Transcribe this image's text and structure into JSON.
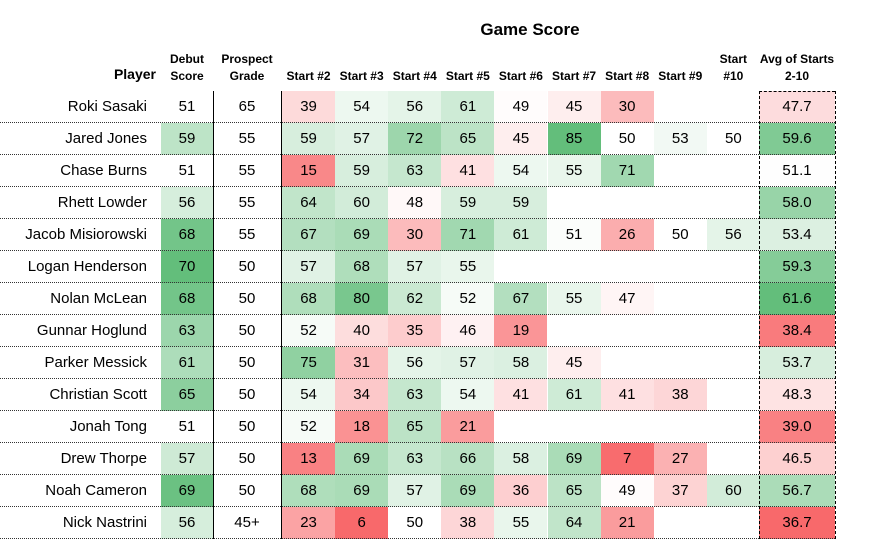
{
  "title": "Game Score",
  "headers": {
    "player": "Player",
    "debut": [
      "Debut",
      "Score"
    ],
    "prospect": [
      "Prospect",
      "Grade"
    ],
    "starts": [
      "Start #2",
      "Start #3",
      "Start #4",
      "Start #5",
      "Start #6",
      "Start #7",
      "Start #8",
      "Start #9"
    ],
    "start10": [
      "Start",
      "#10"
    ],
    "avg": [
      "Avg of Starts",
      "2-10"
    ]
  },
  "chart_data": {
    "type": "table",
    "title": "Game Score",
    "columns": [
      "Player",
      "Debut Score",
      "Prospect Grade",
      "Start #2",
      "Start #3",
      "Start #4",
      "Start #5",
      "Start #6",
      "Start #7",
      "Start #8",
      "Start #9",
      "Start #10",
      "Avg of Starts 2-10"
    ],
    "rows": [
      {
        "player": "Roki Sasaki",
        "debut": 51,
        "grade": "65",
        "starts": [
          39,
          54,
          56,
          61,
          49,
          45,
          30,
          null,
          null
        ],
        "avg": "47.7"
      },
      {
        "player": "Jared Jones",
        "debut": 59,
        "grade": "55",
        "starts": [
          59,
          57,
          72,
          65,
          45,
          85,
          50,
          53,
          50
        ],
        "avg": "59.6"
      },
      {
        "player": "Chase Burns",
        "debut": 51,
        "grade": "55",
        "starts": [
          15,
          59,
          63,
          41,
          54,
          55,
          71,
          null,
          null
        ],
        "avg": "51.1"
      },
      {
        "player": "Rhett Lowder",
        "debut": 56,
        "grade": "55",
        "starts": [
          64,
          60,
          48,
          59,
          59,
          null,
          null,
          null,
          null
        ],
        "avg": "58.0"
      },
      {
        "player": "Jacob Misiorowski",
        "debut": 68,
        "grade": "55",
        "starts": [
          67,
          69,
          30,
          71,
          61,
          51,
          26,
          50,
          56
        ],
        "avg": "53.4"
      },
      {
        "player": "Logan Henderson",
        "debut": 70,
        "grade": "50",
        "starts": [
          57,
          68,
          57,
          55,
          null,
          null,
          null,
          null,
          null
        ],
        "avg": "59.3"
      },
      {
        "player": "Nolan McLean",
        "debut": 68,
        "grade": "50",
        "starts": [
          68,
          80,
          62,
          52,
          67,
          55,
          47,
          null,
          null
        ],
        "avg": "61.6"
      },
      {
        "player": "Gunnar Hoglund",
        "debut": 63,
        "grade": "50",
        "starts": [
          52,
          40,
          35,
          46,
          19,
          null,
          null,
          null,
          null
        ],
        "avg": "38.4"
      },
      {
        "player": "Parker Messick",
        "debut": 61,
        "grade": "50",
        "starts": [
          75,
          31,
          56,
          57,
          58,
          45,
          null,
          null,
          null
        ],
        "avg": "53.7"
      },
      {
        "player": "Christian Scott",
        "debut": 65,
        "grade": "50",
        "starts": [
          54,
          34,
          63,
          54,
          41,
          61,
          41,
          38,
          null
        ],
        "avg": "48.3"
      },
      {
        "player": "Jonah Tong",
        "debut": 51,
        "grade": "50",
        "starts": [
          52,
          18,
          65,
          21,
          null,
          null,
          null,
          null,
          null
        ],
        "avg": "39.0"
      },
      {
        "player": "Drew Thorpe",
        "debut": 57,
        "grade": "50",
        "starts": [
          13,
          69,
          63,
          66,
          58,
          69,
          7,
          27,
          null
        ],
        "avg": "46.5"
      },
      {
        "player": "Noah Cameron",
        "debut": 69,
        "grade": "50",
        "starts": [
          68,
          69,
          57,
          69,
          36,
          65,
          49,
          37,
          60
        ],
        "avg": "56.7"
      },
      {
        "player": "Nick Nastrini",
        "debut": 56,
        "grade": "45+",
        "starts": [
          23,
          6,
          50,
          38,
          55,
          64,
          21,
          null,
          null
        ],
        "avg": "36.7"
      }
    ]
  },
  "colors": {
    "green": "#63be7b",
    "white": "#ffffff",
    "red": "#f8696b"
  }
}
